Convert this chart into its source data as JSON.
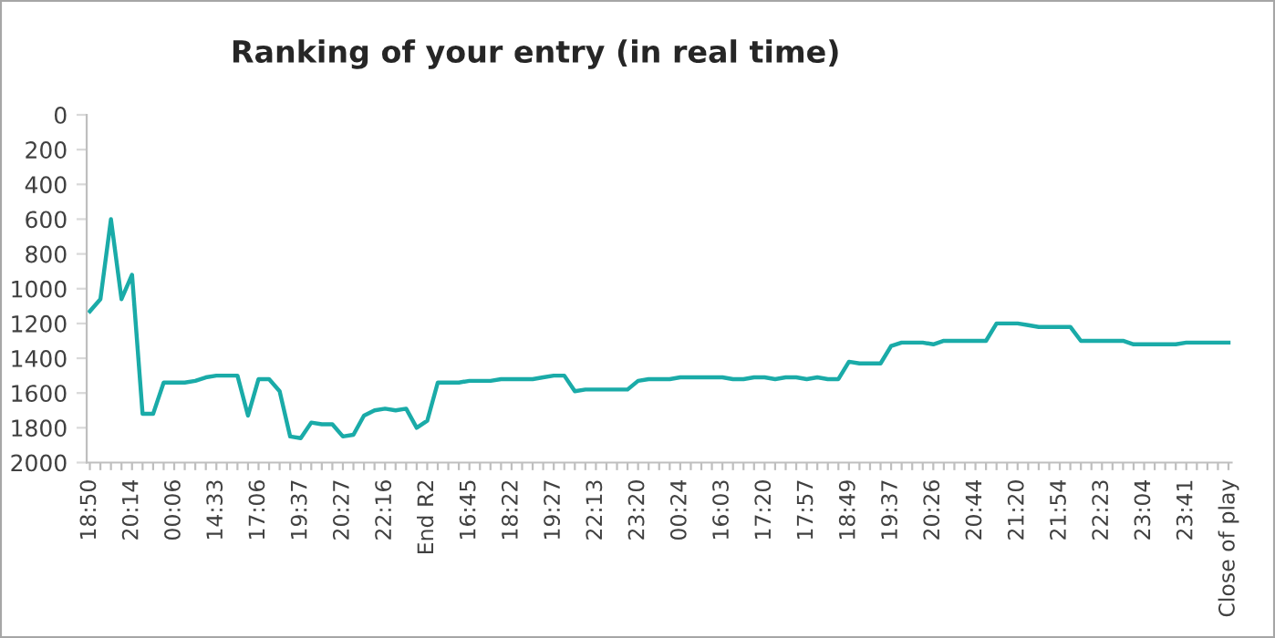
{
  "chart_data": {
    "type": "line",
    "title": "Ranking of your entry (in real time)",
    "categories": [
      "18:50",
      null,
      null,
      null,
      "20:14",
      null,
      null,
      null,
      "00:06",
      null,
      null,
      null,
      "14:33",
      null,
      null,
      null,
      "17:06",
      null,
      null,
      null,
      "19:37",
      null,
      null,
      null,
      "20:27",
      null,
      null,
      null,
      "22:16",
      null,
      null,
      null,
      "End R2",
      null,
      null,
      null,
      "16:45",
      null,
      null,
      null,
      "18:22",
      null,
      null,
      null,
      "19:27",
      null,
      null,
      null,
      "22:13",
      null,
      null,
      null,
      "23:20",
      null,
      null,
      null,
      "00:24",
      null,
      null,
      null,
      "16:03",
      null,
      null,
      null,
      "17:20",
      null,
      null,
      null,
      "17:57",
      null,
      null,
      null,
      "18:49",
      null,
      null,
      null,
      "19:37",
      null,
      null,
      null,
      "20:26",
      null,
      null,
      null,
      "20:44",
      null,
      null,
      null,
      "21:20",
      null,
      null,
      null,
      "21:54",
      null,
      null,
      null,
      "22:23",
      null,
      null,
      null,
      "23:04",
      null,
      null,
      null,
      "23:41",
      null,
      null,
      null,
      "Close of play"
    ],
    "series": [
      {
        "color": "#1aaba8",
        "values": [
          1130,
          1060,
          600,
          1060,
          920,
          1720,
          1720,
          1540,
          1540,
          1540,
          1530,
          1510,
          1500,
          1500,
          1500,
          1730,
          1520,
          1520,
          1590,
          1850,
          1860,
          1770,
          1780,
          1780,
          1850,
          1840,
          1730,
          1700,
          1690,
          1700,
          1690,
          1800,
          1760,
          1540,
          1540,
          1540,
          1530,
          1530,
          1530,
          1520,
          1520,
          1520,
          1520,
          1510,
          1500,
          1500,
          1590,
          1580,
          1580,
          1580,
          1580,
          1580,
          1530,
          1520,
          1520,
          1520,
          1510,
          1510,
          1510,
          1510,
          1510,
          1520,
          1520,
          1510,
          1510,
          1520,
          1510,
          1510,
          1520,
          1510,
          1520,
          1520,
          1420,
          1430,
          1430,
          1430,
          1330,
          1310,
          1310,
          1310,
          1320,
          1300,
          1300,
          1300,
          1300,
          1300,
          1200,
          1200,
          1200,
          1210,
          1220,
          1220,
          1220,
          1220,
          1300,
          1300,
          1300,
          1300,
          1300,
          1320,
          1320,
          1320,
          1320,
          1320,
          1310,
          1310,
          1310,
          1310,
          1310
        ]
      }
    ],
    "ylim": [
      2000,
      0
    ],
    "yticks": [
      0,
      200,
      400,
      600,
      800,
      1000,
      1200,
      1400,
      1600,
      1800,
      2000
    ],
    "grid": false,
    "marker": "none",
    "line_style": "solid"
  }
}
